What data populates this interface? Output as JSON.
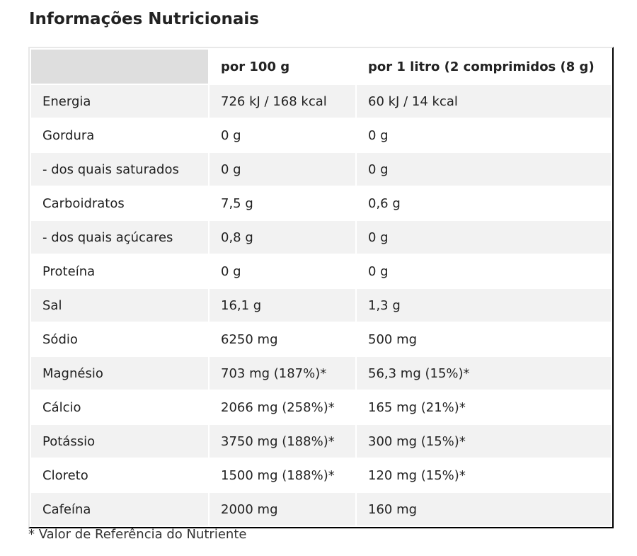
{
  "title": "Informações Nutricionais",
  "headers": [
    "",
    "por 100 g",
    "por 1 litro (2 comprimidos (8 g)"
  ],
  "rows": [
    [
      "Energia",
      "726 kJ / 168 kcal",
      "60 kJ / 14 kcal"
    ],
    [
      "Gordura",
      "0 g",
      "0 g"
    ],
    [
      "- dos quais saturados",
      "0 g",
      "0 g"
    ],
    [
      "Carboidratos",
      "7,5 g",
      "0,6 g"
    ],
    [
      "- dos quais açúcares",
      "0,8 g",
      "0 g"
    ],
    [
      "Proteína",
      "0 g",
      "0 g"
    ],
    [
      "Sal",
      "16,1 g",
      "1,3 g"
    ],
    [
      "Sódio",
      "6250 mg",
      "500 mg"
    ],
    [
      "Magnésio",
      "703 mg (187%)*",
      "56,3 mg (15%)*"
    ],
    [
      "Cálcio",
      "2066 mg (258%)*",
      "165 mg (21%)*"
    ],
    [
      "Potássio",
      "3750 mg (188%)*",
      "300 mg (15%)*"
    ],
    [
      "Cloreto",
      "1500 mg (188%)*",
      "120 mg (15%)*"
    ],
    [
      "Cafeína",
      "2000 mg",
      "160 mg"
    ]
  ],
  "footnote": "* Valor de Referência do Nutriente"
}
